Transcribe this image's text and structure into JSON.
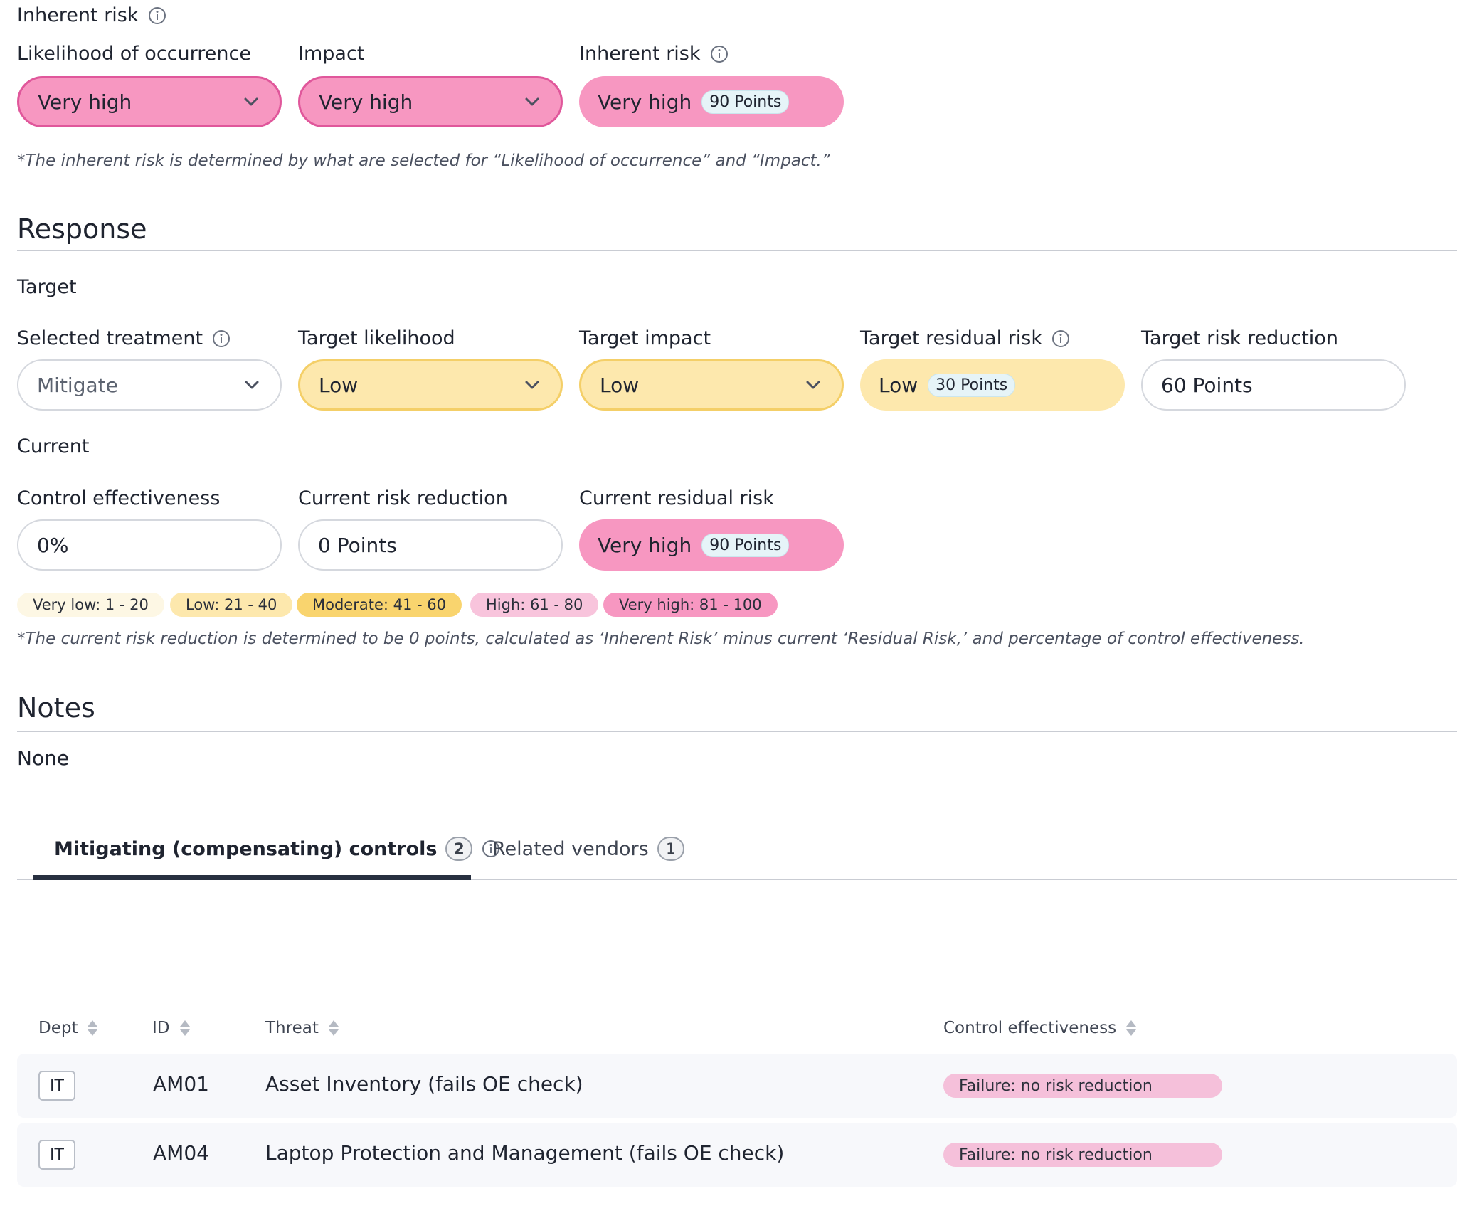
{
  "inherent": {
    "heading": "Inherent risk",
    "likelihood_label": "Likelihood of occurrence",
    "likelihood_value": "Very high",
    "impact_label": "Impact",
    "impact_value": "Very high",
    "risk_label": "Inherent risk",
    "risk_value": "Very high",
    "risk_points": "90 Points",
    "footnote": "*The inherent risk is determined by what are selected for “Likelihood of occurrence” and “Impact.”"
  },
  "response": {
    "heading": "Response",
    "target": {
      "heading": "Target",
      "treatment_label": "Selected treatment",
      "treatment_value": "Mitigate",
      "likelihood_label": "Target likelihood",
      "likelihood_value": "Low",
      "impact_label": "Target impact",
      "impact_value": "Low",
      "residual_label": "Target residual risk",
      "residual_value": "Low",
      "residual_points": "30 Points",
      "reduction_label": "Target risk reduction",
      "reduction_value": "60 Points"
    },
    "current": {
      "heading": "Current",
      "effectiveness_label": "Control effectiveness",
      "effectiveness_value": "0%",
      "reduction_label": "Current risk reduction",
      "reduction_value": "0 Points",
      "residual_label": "Current residual risk",
      "residual_value": "Very high",
      "residual_points": "90 Points"
    },
    "legend": [
      {
        "label": "Very low: 1 - 20",
        "color": "#fdf7e4"
      },
      {
        "label": "Low: 21 - 40",
        "color": "#fde8ad"
      },
      {
        "label": "Moderate: 41 - 60",
        "color": "#f9d46e"
      },
      {
        "label": "High: 61 - 80",
        "color": "#f8c4dc"
      },
      {
        "label": "Very high: 81 - 100",
        "color": "#f797c1"
      }
    ],
    "footnote": "*The current risk reduction is determined to be 0 points, calculated as ‘Inherent Risk’ minus current ‘Residual Risk,’ and percentage of control effectiveness."
  },
  "notes": {
    "heading": "Notes",
    "value": "None"
  },
  "tabs": [
    {
      "label": "Mitigating (compensating) controls",
      "count": "2",
      "active": true
    },
    {
      "label": "Related vendors",
      "count": "1",
      "active": false
    }
  ],
  "table": {
    "columns": [
      "Dept",
      "ID",
      "Threat",
      "Control effectiveness"
    ],
    "rows": [
      {
        "dept": "IT",
        "id": "AM01",
        "threat": "Asset Inventory (fails OE check)",
        "effectiveness": "Failure: no risk reduction"
      },
      {
        "dept": "IT",
        "id": "AM04",
        "threat": "Laptop Protection and Management (fails OE check)",
        "effectiveness": "Failure: no risk reduction"
      }
    ]
  },
  "colors": {
    "very_high": "#f797c1",
    "low": "#fde8ad",
    "failure_badge": "#f5c0da",
    "tab_underline": "#283040"
  }
}
